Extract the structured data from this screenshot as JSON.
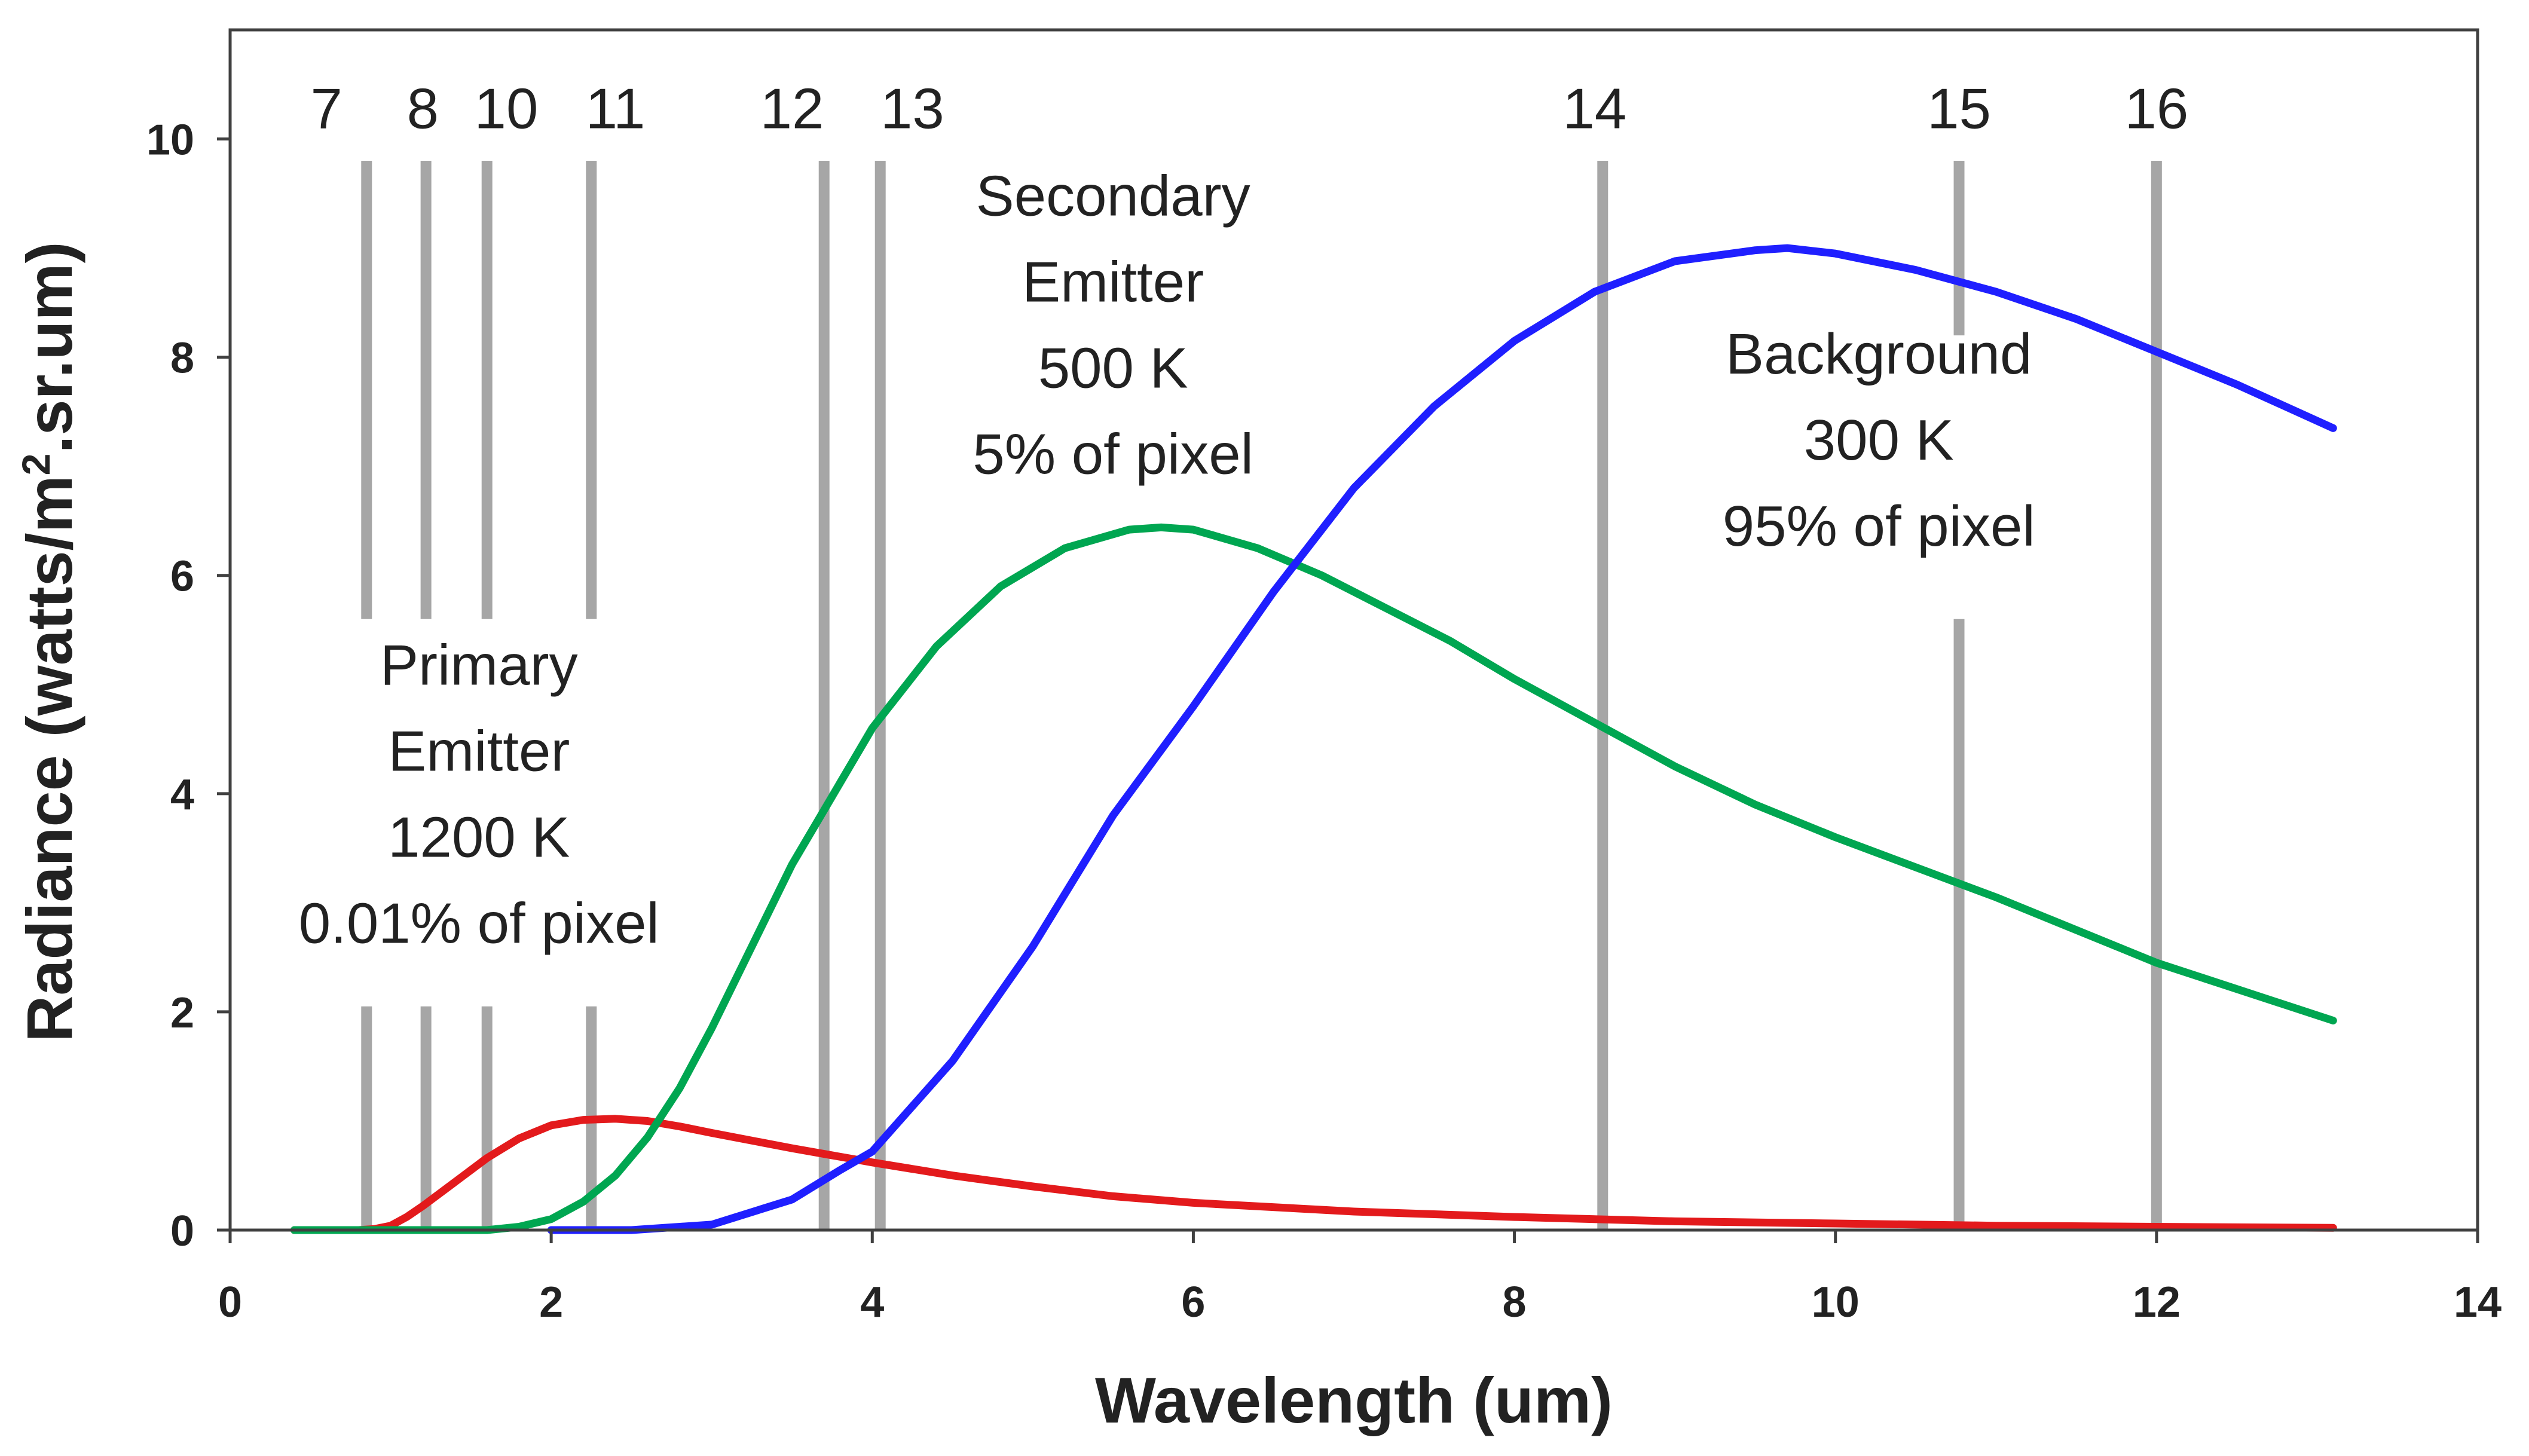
{
  "chart_data": {
    "type": "line",
    "title": "",
    "xlabel": "Wavelength (um)",
    "ylabel_parts": {
      "before": "Radiance (watts/m",
      "sup": "2",
      "after": ".sr.um)"
    },
    "xlim": [
      0,
      14
    ],
    "ylim": [
      0,
      11
    ],
    "xticks": [
      0,
      2,
      4,
      6,
      8,
      10,
      12,
      14
    ],
    "yticks": [
      0,
      2,
      4,
      6,
      8,
      10
    ],
    "grid": false,
    "colors": {
      "primary": "#e31a1c",
      "secondary": "#00a651",
      "background": "#1f1fff",
      "band": "#a6a6a6",
      "axis": "#404040",
      "text": "#222222"
    },
    "series": [
      {
        "name": "Primary Emitter",
        "color": "#e31a1c",
        "x": [
          0.4,
          0.8,
          0.9,
          1.0,
          1.1,
          1.2,
          1.4,
          1.6,
          1.8,
          2.0,
          2.2,
          2.4,
          2.6,
          2.8,
          3.0,
          3.5,
          4.0,
          4.5,
          5.0,
          5.5,
          6.0,
          7.0,
          8.0,
          9.0,
          10.0,
          11.0,
          12.0,
          13.1
        ],
        "y": [
          0.0,
          0.0,
          0.01,
          0.04,
          0.12,
          0.22,
          0.44,
          0.66,
          0.84,
          0.96,
          1.01,
          1.02,
          1.0,
          0.95,
          0.89,
          0.75,
          0.62,
          0.5,
          0.4,
          0.31,
          0.25,
          0.17,
          0.12,
          0.08,
          0.06,
          0.04,
          0.03,
          0.02
        ]
      },
      {
        "name": "Secondary Emitter",
        "color": "#00a651",
        "x": [
          0.4,
          1.6,
          1.8,
          2.0,
          2.2,
          2.4,
          2.6,
          2.8,
          3.0,
          3.2,
          3.5,
          3.8,
          4.0,
          4.4,
          4.8,
          5.2,
          5.6,
          5.8,
          6.0,
          6.4,
          6.8,
          7.2,
          7.6,
          8.0,
          8.5,
          9.0,
          9.5,
          10.0,
          11.0,
          12.0,
          13.1
        ],
        "y": [
          0.0,
          0.0,
          0.03,
          0.1,
          0.26,
          0.5,
          0.85,
          1.3,
          1.85,
          2.45,
          3.35,
          4.1,
          4.6,
          5.35,
          5.9,
          6.25,
          6.42,
          6.44,
          6.42,
          6.25,
          6.0,
          5.7,
          5.4,
          5.05,
          4.65,
          4.25,
          3.9,
          3.6,
          3.05,
          2.45,
          1.92
        ]
      },
      {
        "name": "Background",
        "color": "#1f1fff",
        "x": [
          2.0,
          2.5,
          3.0,
          3.5,
          3.8,
          4.0,
          4.5,
          5.0,
          5.5,
          6.0,
          6.5,
          7.0,
          7.5,
          8.0,
          8.5,
          9.0,
          9.5,
          9.7,
          10.0,
          10.5,
          11.0,
          11.5,
          12.0,
          12.5,
          13.1
        ],
        "y": [
          0.0,
          0.0,
          0.05,
          0.28,
          0.55,
          0.72,
          1.55,
          2.6,
          3.8,
          4.8,
          5.85,
          6.8,
          7.55,
          8.15,
          8.6,
          8.88,
          8.98,
          9.0,
          8.95,
          8.8,
          8.6,
          8.35,
          8.05,
          7.75,
          7.35
        ]
      }
    ],
    "bands": [
      {
        "label": "7",
        "x": 0.85,
        "label_x": 0.6
      },
      {
        "label": "8",
        "x": 1.22,
        "label_x": 1.2
      },
      {
        "label": "10",
        "x": 1.6,
        "label_x": 1.72
      },
      {
        "label": "11",
        "x": 2.25,
        "label_x": 2.4
      },
      {
        "label": "12",
        "x": 3.7,
        "label_x": 3.5
      },
      {
        "label": "13",
        "x": 4.05,
        "label_x": 4.25
      },
      {
        "label": "14",
        "x": 8.55,
        "label_x": 8.5
      },
      {
        "label": "15",
        "x": 10.77,
        "label_x": 10.77
      },
      {
        "label": "16",
        "x": 12.0,
        "label_x": 12.0
      }
    ],
    "band_segments": [
      {
        "x": 0.85,
        "from": 0,
        "to": 2.05
      },
      {
        "x": 0.85,
        "from": 5.6,
        "to": 9.8
      },
      {
        "x": 1.22,
        "from": 0,
        "to": 2.05
      },
      {
        "x": 1.22,
        "from": 5.6,
        "to": 9.8
      },
      {
        "x": 1.6,
        "from": 0,
        "to": 2.05
      },
      {
        "x": 1.6,
        "from": 5.6,
        "to": 9.8
      },
      {
        "x": 2.25,
        "from": 0,
        "to": 2.05
      },
      {
        "x": 2.25,
        "from": 5.6,
        "to": 9.8
      },
      {
        "x": 3.7,
        "from": 0,
        "to": 9.8
      },
      {
        "x": 4.05,
        "from": 0,
        "to": 9.8
      },
      {
        "x": 8.55,
        "from": 0,
        "to": 9.8
      },
      {
        "x": 10.77,
        "from": 0,
        "to": 5.6
      },
      {
        "x": 10.77,
        "from": 8.2,
        "to": 9.8
      },
      {
        "x": 12.0,
        "from": 0,
        "to": 9.8
      }
    ],
    "annotations": [
      {
        "name": "primary",
        "x": 1.55,
        "y": 5.0,
        "lines": [
          "Primary",
          "Emitter",
          "1200 K",
          "0.01% of pixel"
        ]
      },
      {
        "name": "secondary",
        "x": 5.5,
        "y": 9.3,
        "lines": [
          "Secondary",
          "Emitter",
          "500 K",
          "5% of pixel"
        ]
      },
      {
        "name": "background",
        "x": 10.27,
        "y": 7.85,
        "lines": [
          "Background",
          "300 K",
          "95% of pixel"
        ]
      }
    ]
  }
}
